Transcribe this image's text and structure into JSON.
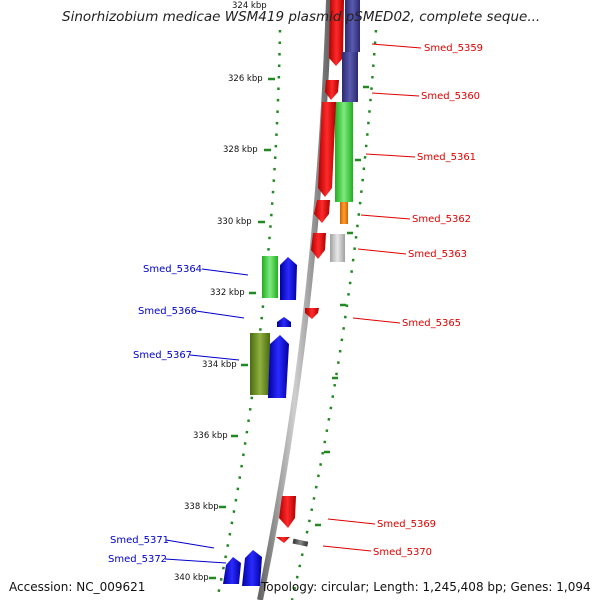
{
  "title": "Sinorhizobium medicae WSM419 plasmid pSMED02, complete seque...",
  "ticks": [
    "324 kbp",
    "326 kbp",
    "328 kbp",
    "330 kbp",
    "332 kbp",
    "334 kbp",
    "336 kbp",
    "338 kbp",
    "340 kbp"
  ],
  "genes": [
    {
      "label": "Smed_5359",
      "strand": "reverse",
      "color": "#e00000"
    },
    {
      "label": "Smed_5360",
      "strand": "reverse",
      "color": "#e00000"
    },
    {
      "label": "Smed_5361",
      "strand": "reverse",
      "color": "#e00000"
    },
    {
      "label": "Smed_5362",
      "strand": "reverse",
      "color": "#e00000"
    },
    {
      "label": "Smed_5363",
      "strand": "reverse",
      "color": "#e00000"
    },
    {
      "label": "Smed_5364",
      "strand": "forward",
      "color": "#0000cc"
    },
    {
      "label": "Smed_5365",
      "strand": "reverse",
      "color": "#e00000"
    },
    {
      "label": "Smed_5366",
      "strand": "forward",
      "color": "#0000cc"
    },
    {
      "label": "Smed_5367",
      "strand": "forward",
      "color": "#0000cc"
    },
    {
      "label": "Smed_5369",
      "strand": "reverse",
      "color": "#e00000"
    },
    {
      "label": "Smed_5370",
      "strand": "reverse",
      "color": "#e00000"
    },
    {
      "label": "Smed_5371",
      "strand": "forward",
      "color": "#0000cc"
    },
    {
      "label": "Smed_5372",
      "strand": "forward",
      "color": "#0000cc"
    }
  ],
  "footer": {
    "accession": "Accession: NC_009621",
    "topology": "Topology: circular; Length: 1,245,408 bp; Genes: 1,094"
  }
}
